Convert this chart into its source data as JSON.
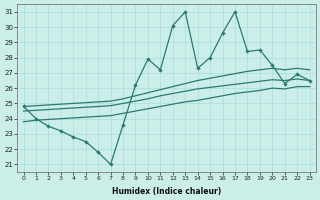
{
  "xlabel": "Humidex (Indice chaleur)",
  "bg_color": "#cceee8",
  "grid_color": "#aadddd",
  "line_color": "#2a7a72",
  "xlim": [
    -0.5,
    23.5
  ],
  "ylim": [
    20.5,
    31.5
  ],
  "yticks": [
    21,
    22,
    23,
    24,
    25,
    26,
    27,
    28,
    29,
    30,
    31
  ],
  "xticks": [
    0,
    1,
    2,
    3,
    4,
    5,
    6,
    7,
    8,
    9,
    10,
    11,
    12,
    13,
    14,
    15,
    16,
    17,
    18,
    19,
    20,
    21,
    22,
    23
  ],
  "line_zigzag": [
    24.8,
    24.0,
    23.5,
    23.2,
    22.8,
    22.5,
    21.8,
    21.0,
    23.6,
    26.2,
    27.9,
    27.2,
    30.1,
    31.0,
    27.3,
    28.0,
    29.6,
    31.0,
    28.4,
    28.5,
    27.5,
    26.3,
    26.9,
    26.5
  ],
  "line_trend_top": [
    24.8,
    24.85,
    24.9,
    24.95,
    25.0,
    25.05,
    25.1,
    25.15,
    25.3,
    25.5,
    25.7,
    25.9,
    26.1,
    26.3,
    26.5,
    26.65,
    26.8,
    26.95,
    27.1,
    27.2,
    27.3,
    27.2,
    27.3,
    27.2
  ],
  "line_trend_mid": [
    24.5,
    24.55,
    24.6,
    24.65,
    24.7,
    24.75,
    24.8,
    24.85,
    25.0,
    25.15,
    25.3,
    25.5,
    25.65,
    25.8,
    25.95,
    26.05,
    26.15,
    26.25,
    26.35,
    26.45,
    26.55,
    26.5,
    26.6,
    26.5
  ],
  "line_trend_bot": [
    23.8,
    23.9,
    23.95,
    24.0,
    24.05,
    24.1,
    24.15,
    24.2,
    24.35,
    24.5,
    24.65,
    24.8,
    24.95,
    25.1,
    25.2,
    25.35,
    25.5,
    25.65,
    25.75,
    25.85,
    26.0,
    25.95,
    26.1,
    26.1
  ]
}
